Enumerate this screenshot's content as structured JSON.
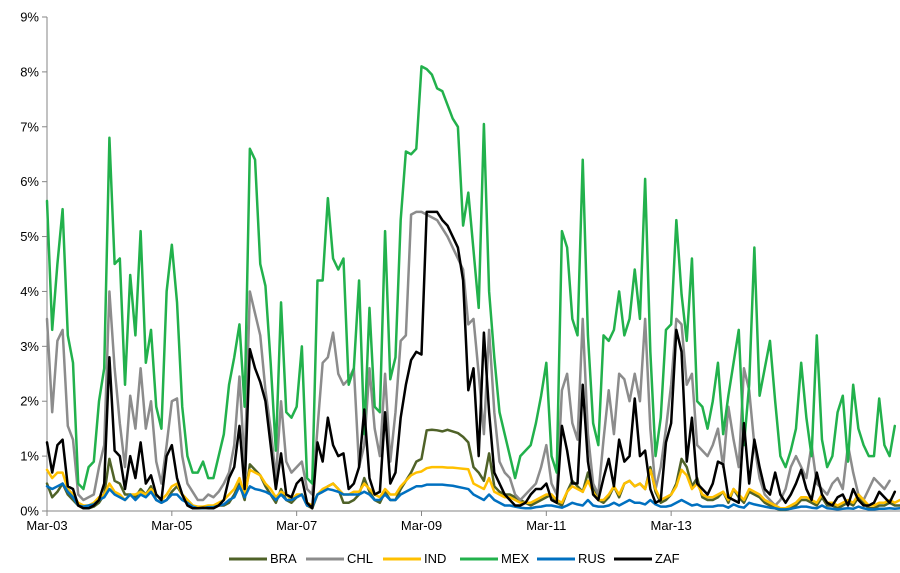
{
  "chart_data": {
    "type": "line",
    "title": "",
    "xlabel": "",
    "ylabel": "",
    "x_ticks": [
      "Mar-03",
      "Mar-05",
      "Mar-07",
      "Mar-09",
      "Mar-11",
      "Mar-13"
    ],
    "y_ticks": [
      "0%",
      "1%",
      "2%",
      "3%",
      "4%",
      "5%",
      "6%",
      "7%",
      "8%",
      "9%"
    ],
    "ylim": [
      0,
      9
    ],
    "y_unit": "%",
    "x_range": [
      "Mar-03",
      "Nov-14"
    ],
    "grid": false,
    "legend_position": "bottom",
    "series": [
      {
        "name": "BRA",
        "color": "#4f6228",
        "values": [
          0.5,
          0.25,
          0.35,
          0.5,
          0.3,
          0.2,
          0.1,
          0.05,
          0.05,
          0.08,
          0.15,
          0.3,
          0.95,
          0.55,
          0.5,
          0.3,
          0.3,
          0.25,
          0.4,
          0.3,
          0.45,
          0.2,
          0.15,
          0.2,
          0.35,
          0.45,
          0.3,
          0.2,
          0.1,
          0.05,
          0.05,
          0.06,
          0.05,
          0.1,
          0.1,
          0.15,
          0.3,
          0.5,
          0.2,
          0.85,
          0.75,
          0.65,
          0.45,
          0.3,
          0.15,
          0.4,
          0.2,
          0.15,
          0.25,
          0.3,
          0.1,
          0.05,
          0.3,
          0.35,
          0.45,
          0.5,
          0.4,
          0.15,
          0.15,
          0.2,
          0.3,
          0.6,
          0.35,
          0.2,
          0.15,
          0.35,
          0.2,
          0.2,
          0.4,
          0.55,
          0.7,
          0.9,
          0.95,
          1.47,
          1.48,
          1.47,
          1.45,
          1.48,
          1.45,
          1.42,
          1.35,
          1.25,
          0.8,
          0.7,
          0.55,
          1.05,
          0.45,
          0.35,
          0.3,
          0.3,
          0.25,
          0.2,
          0.15,
          0.1,
          0.15,
          0.2,
          0.25,
          0.3,
          0.15,
          0.1,
          0.35,
          0.55,
          0.45,
          0.35,
          0.7,
          0.4,
          0.2,
          0.15,
          0.25,
          0.45,
          0.25,
          0.5,
          0.55,
          0.45,
          0.5,
          0.4,
          0.8,
          0.35,
          0.15,
          0.2,
          0.3,
          0.5,
          0.95,
          0.8,
          0.45,
          0.6,
          0.25,
          0.2,
          0.2,
          0.25,
          0.35,
          0.15,
          0.4,
          0.25,
          0.15,
          0.35,
          0.3,
          0.25,
          0.15,
          0.1,
          0.05,
          0.02,
          0.02,
          0.05,
          0.1,
          0.2,
          0.2,
          0.15,
          0.1,
          0.25,
          0.1,
          0.1,
          0.05,
          0.1,
          0.15,
          0.1,
          0.25,
          0.15,
          0.05,
          0.05,
          0.1,
          0.1,
          0.15,
          0.1,
          0.1
        ]
      },
      {
        "name": "CHL",
        "color": "#8c8c8c",
        "values": [
          3.5,
          1.8,
          3.1,
          3.3,
          1.55,
          1.3,
          0.3,
          0.2,
          0.25,
          0.3,
          0.8,
          1.2,
          4.0,
          2.6,
          1.6,
          0.8,
          2.1,
          1.5,
          2.6,
          1.5,
          2.0,
          0.9,
          0.5,
          1.2,
          2.0,
          2.05,
          1.0,
          0.5,
          0.35,
          0.2,
          0.2,
          0.3,
          0.25,
          0.35,
          0.5,
          0.7,
          1.2,
          2.45,
          0.8,
          4.0,
          3.6,
          3.2,
          2.2,
          1.5,
          0.6,
          2.0,
          0.9,
          0.7,
          0.8,
          0.9,
          0.4,
          0.3,
          1.5,
          2.7,
          2.8,
          3.25,
          2.5,
          2.3,
          2.4,
          2.6,
          0.8,
          1.2,
          2.6,
          1.5,
          1.0,
          2.5,
          0.9,
          1.8,
          3.1,
          3.2,
          5.4,
          5.45,
          5.45,
          5.4,
          5.35,
          5.3,
          5.15,
          5.0,
          4.8,
          4.6,
          4.4,
          3.4,
          3.5,
          2.5,
          1.4,
          3.3,
          1.8,
          0.9,
          0.7,
          0.6,
          0.3,
          0.2,
          0.3,
          0.4,
          0.5,
          0.8,
          1.2,
          0.5,
          0.3,
          2.2,
          2.5,
          1.6,
          1.3,
          3.5,
          1.4,
          0.5,
          0.3,
          1.3,
          2.2,
          1.4,
          2.5,
          2.4,
          2.0,
          2.5,
          2.0,
          3.5,
          1.5,
          0.4,
          0.8,
          1.5,
          2.3,
          3.5,
          3.4,
          2.3,
          2.5,
          1.2,
          1.1,
          1.0,
          1.2,
          1.5,
          0.8,
          1.9,
          1.3,
          0.8,
          2.6,
          2.2,
          1.2,
          0.6,
          0.3,
          0.2,
          0.1,
          0.2,
          0.4,
          0.8,
          1.0,
          0.8,
          0.6,
          1.2,
          0.5,
          0.4,
          0.3,
          0.5,
          0.6,
          0.4,
          1.2,
          0.7,
          0.3,
          0.2,
          0.4,
          0.6,
          0.5,
          0.4,
          0.55
        ]
      },
      {
        "name": "IND",
        "color": "#ffc000",
        "values": [
          0.75,
          0.6,
          0.7,
          0.7,
          0.4,
          0.3,
          0.15,
          0.1,
          0.1,
          0.15,
          0.25,
          0.3,
          0.5,
          0.35,
          0.3,
          0.2,
          0.3,
          0.3,
          0.35,
          0.3,
          0.4,
          0.3,
          0.2,
          0.3,
          0.45,
          0.5,
          0.3,
          0.2,
          0.1,
          0.08,
          0.08,
          0.1,
          0.1,
          0.15,
          0.2,
          0.3,
          0.4,
          0.6,
          0.3,
          0.75,
          0.7,
          0.65,
          0.5,
          0.4,
          0.25,
          0.35,
          0.3,
          0.2,
          0.3,
          0.3,
          0.15,
          0.1,
          0.3,
          0.4,
          0.45,
          0.5,
          0.4,
          0.3,
          0.3,
          0.35,
          0.35,
          0.5,
          0.4,
          0.3,
          0.25,
          0.4,
          0.3,
          0.3,
          0.45,
          0.55,
          0.65,
          0.7,
          0.72,
          0.78,
          0.8,
          0.8,
          0.8,
          0.79,
          0.79,
          0.78,
          0.77,
          0.76,
          0.5,
          0.45,
          0.4,
          0.6,
          0.35,
          0.3,
          0.25,
          0.25,
          0.2,
          0.15,
          0.15,
          0.15,
          0.2,
          0.25,
          0.3,
          0.3,
          0.2,
          0.15,
          0.35,
          0.45,
          0.4,
          0.35,
          0.55,
          0.35,
          0.2,
          0.2,
          0.3,
          0.45,
          0.3,
          0.5,
          0.55,
          0.45,
          0.5,
          0.4,
          0.75,
          0.4,
          0.2,
          0.25,
          0.3,
          0.45,
          0.75,
          0.65,
          0.4,
          0.5,
          0.3,
          0.25,
          0.25,
          0.3,
          0.35,
          0.2,
          0.4,
          0.3,
          0.2,
          0.4,
          0.35,
          0.3,
          0.2,
          0.15,
          0.1,
          0.05,
          0.05,
          0.1,
          0.15,
          0.25,
          0.25,
          0.2,
          0.15,
          0.3,
          0.15,
          0.15,
          0.1,
          0.15,
          0.2,
          0.15,
          0.3,
          0.2,
          0.1,
          0.1,
          0.15,
          0.15,
          0.2,
          0.15,
          0.2
        ]
      },
      {
        "name": "MEX",
        "color": "#22b14c",
        "values": [
          5.65,
          3.3,
          4.5,
          5.5,
          3.2,
          2.7,
          0.5,
          0.4,
          0.8,
          0.9,
          2.0,
          2.6,
          6.8,
          4.5,
          4.6,
          2.3,
          4.3,
          3.2,
          5.1,
          2.7,
          3.3,
          1.9,
          1.5,
          4.0,
          4.85,
          3.8,
          1.9,
          1.0,
          0.7,
          0.7,
          0.9,
          0.6,
          0.6,
          1.0,
          1.4,
          2.3,
          2.8,
          3.4,
          1.9,
          6.6,
          6.4,
          4.5,
          4.1,
          2.7,
          1.1,
          3.8,
          1.8,
          1.7,
          1.9,
          3.0,
          0.6,
          0.5,
          4.2,
          4.2,
          5.7,
          4.6,
          4.4,
          4.6,
          2.3,
          2.6,
          4.2,
          1.4,
          3.7,
          1.9,
          1.8,
          5.1,
          2.4,
          2.8,
          5.3,
          6.55,
          6.5,
          6.6,
          8.1,
          8.05,
          7.95,
          7.7,
          7.65,
          7.4,
          7.15,
          7.0,
          5.2,
          5.8,
          4.75,
          3.7,
          7.05,
          4.0,
          2.8,
          1.8,
          1.4,
          1.0,
          0.6,
          1.0,
          1.1,
          1.2,
          1.6,
          2.1,
          2.7,
          1.0,
          0.7,
          5.1,
          4.8,
          3.5,
          3.2,
          6.4,
          3.2,
          1.6,
          1.2,
          3.2,
          3.1,
          3.3,
          4.0,
          3.2,
          3.5,
          4.4,
          3.5,
          6.05,
          2.9,
          1.0,
          1.7,
          3.3,
          3.4,
          5.3,
          3.95,
          3.1,
          4.6,
          2.0,
          1.9,
          1.5,
          2.0,
          2.7,
          1.4,
          2.1,
          2.7,
          3.3,
          1.2,
          2.3,
          4.8,
          2.1,
          2.6,
          3.1,
          2.0,
          1.0,
          0.8,
          1.1,
          1.5,
          2.7,
          1.7,
          1.0,
          3.2,
          1.3,
          0.8,
          1.0,
          1.8,
          2.1,
          0.9,
          2.3,
          1.5,
          1.2,
          1.0,
          1.0,
          2.05,
          1.2,
          1.0,
          1.55
        ]
      },
      {
        "name": "RUS",
        "color": "#0070c0",
        "values": [
          0.45,
          0.4,
          0.45,
          0.5,
          0.35,
          0.25,
          0.1,
          0.08,
          0.1,
          0.12,
          0.2,
          0.25,
          0.4,
          0.3,
          0.25,
          0.2,
          0.3,
          0.2,
          0.3,
          0.25,
          0.35,
          0.2,
          0.15,
          0.2,
          0.3,
          0.3,
          0.2,
          0.15,
          0.08,
          0.05,
          0.05,
          0.07,
          0.07,
          0.1,
          0.12,
          0.2,
          0.25,
          0.45,
          0.25,
          0.45,
          0.4,
          0.38,
          0.35,
          0.3,
          0.2,
          0.3,
          0.2,
          0.2,
          0.25,
          0.3,
          0.1,
          0.08,
          0.3,
          0.35,
          0.4,
          0.38,
          0.35,
          0.3,
          0.3,
          0.3,
          0.3,
          0.35,
          0.3,
          0.2,
          0.2,
          0.3,
          0.2,
          0.2,
          0.3,
          0.35,
          0.4,
          0.45,
          0.45,
          0.48,
          0.48,
          0.48,
          0.48,
          0.47,
          0.46,
          0.44,
          0.42,
          0.4,
          0.3,
          0.25,
          0.2,
          0.3,
          0.2,
          0.15,
          0.1,
          0.1,
          0.08,
          0.06,
          0.05,
          0.05,
          0.07,
          0.08,
          0.1,
          0.1,
          0.08,
          0.06,
          0.1,
          0.15,
          0.12,
          0.1,
          0.2,
          0.1,
          0.08,
          0.08,
          0.1,
          0.15,
          0.1,
          0.15,
          0.2,
          0.15,
          0.15,
          0.12,
          0.2,
          0.12,
          0.08,
          0.08,
          0.1,
          0.15,
          0.2,
          0.15,
          0.1,
          0.12,
          0.08,
          0.08,
          0.08,
          0.1,
          0.1,
          0.06,
          0.12,
          0.08,
          0.06,
          0.15,
          0.12,
          0.1,
          0.08,
          0.06,
          0.05,
          0.03,
          0.03,
          0.04,
          0.06,
          0.08,
          0.08,
          0.06,
          0.05,
          0.1,
          0.05,
          0.04,
          0.03,
          0.04,
          0.05,
          0.04,
          0.08,
          0.05,
          0.03,
          0.03,
          0.04,
          0.04,
          0.05,
          0.04,
          0.05
        ]
      },
      {
        "name": "ZAF",
        "color": "#000000",
        "values": [
          1.25,
          0.7,
          1.2,
          1.3,
          0.45,
          0.4,
          0.1,
          0.05,
          0.05,
          0.1,
          0.2,
          0.5,
          2.8,
          1.1,
          1.0,
          0.4,
          1.0,
          0.6,
          1.25,
          0.5,
          0.65,
          0.3,
          0.2,
          1.0,
          1.2,
          0.6,
          0.3,
          0.1,
          0.05,
          0.05,
          0.06,
          0.05,
          0.05,
          0.1,
          0.2,
          0.6,
          0.8,
          1.55,
          0.4,
          2.95,
          2.6,
          2.35,
          2.0,
          1.2,
          0.4,
          1.05,
          0.3,
          0.25,
          0.5,
          0.6,
          0.15,
          0.05,
          1.25,
          0.9,
          1.7,
          1.2,
          1.0,
          1.05,
          0.4,
          0.5,
          0.8,
          1.85,
          0.6,
          0.3,
          0.35,
          1.8,
          0.5,
          0.7,
          1.7,
          2.3,
          2.75,
          2.9,
          2.85,
          5.45,
          5.45,
          5.45,
          5.3,
          5.2,
          5.0,
          4.8,
          4.2,
          2.2,
          2.6,
          1.0,
          3.25,
          1.8,
          0.7,
          0.5,
          0.3,
          0.2,
          0.1,
          0.1,
          0.15,
          0.3,
          0.4,
          0.4,
          0.5,
          0.2,
          0.15,
          1.55,
          1.1,
          0.5,
          0.5,
          2.3,
          0.9,
          0.3,
          0.2,
          0.6,
          0.95,
          0.45,
          1.3,
          0.9,
          1.0,
          2.05,
          1.0,
          1.1,
          0.4,
          0.15,
          0.2,
          1.25,
          1.6,
          3.3,
          2.9,
          0.9,
          1.7,
          0.5,
          0.4,
          0.3,
          0.5,
          0.9,
          0.85,
          0.25,
          0.2,
          0.15,
          1.6,
          0.5,
          1.3,
          0.8,
          0.4,
          0.3,
          0.7,
          0.3,
          0.15,
          0.3,
          0.5,
          0.75,
          0.4,
          0.2,
          0.7,
          0.3,
          0.15,
          0.1,
          0.25,
          0.3,
          0.1,
          0.4,
          0.2,
          0.1,
          0.1,
          0.15,
          0.35,
          0.25,
          0.15,
          0.35
        ]
      }
    ]
  }
}
